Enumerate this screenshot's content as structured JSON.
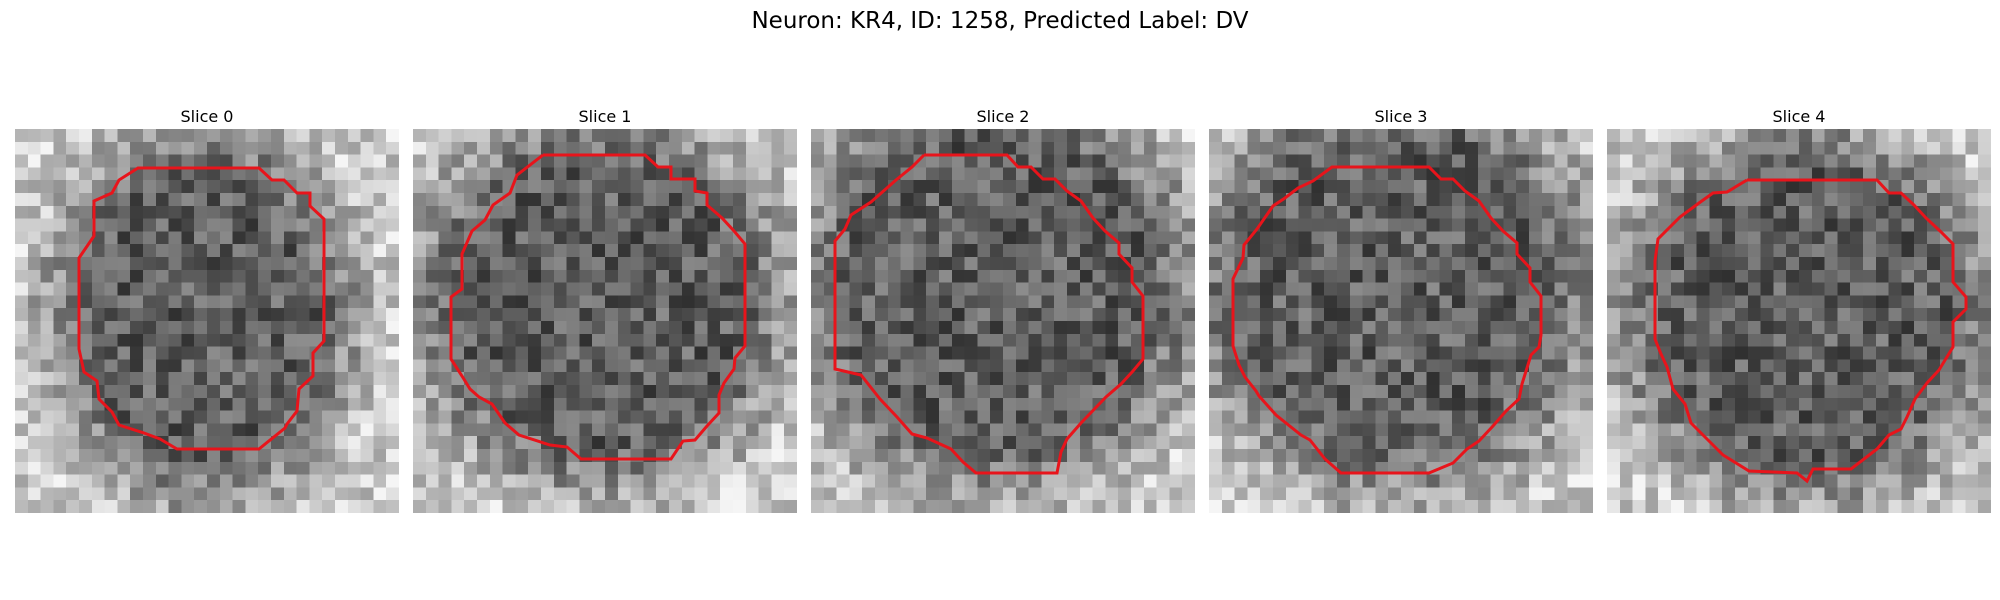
{
  "figure": {
    "title": "Neuron: KR4, ID: 1258, Predicted Label: DV"
  },
  "slices": [
    {
      "title": "Slice 0"
    },
    {
      "title": "Slice 1"
    },
    {
      "title": "Slice 2"
    },
    {
      "title": "Slice 3"
    },
    {
      "title": "Slice 4"
    }
  ],
  "colors": {
    "contour": "#e8141b",
    "colormap": "gray"
  }
}
